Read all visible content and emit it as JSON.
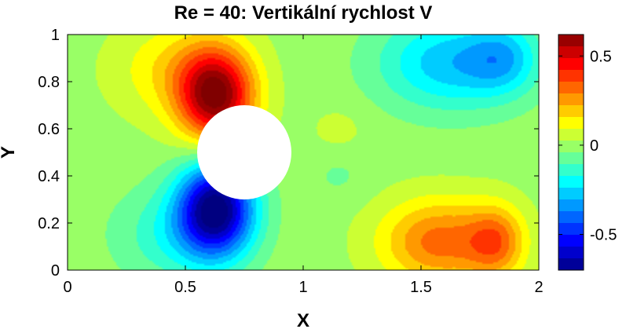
{
  "chart_data": {
    "type": "heatmap",
    "subtype": "filled-contour",
    "title": "Re = 40: Vertikální rychlost V",
    "xlabel": "X",
    "ylabel": "Y",
    "xlim": [
      0,
      2
    ],
    "ylim": [
      0,
      1
    ],
    "x_ticks": [
      0,
      0.5,
      1,
      1.5,
      2
    ],
    "x_tick_labels": [
      "0",
      "0.5",
      "1",
      "1.5",
      "2"
    ],
    "y_ticks": [
      0,
      0.2,
      0.4,
      0.6,
      0.8,
      1
    ],
    "y_tick_labels": [
      "0",
      "0.2",
      "0.4",
      "0.6",
      "0.8",
      "1"
    ],
    "colorbar": {
      "colormap": "jet",
      "range": [
        -0.7,
        0.62
      ],
      "ticks": [
        -0.5,
        0,
        0.5
      ],
      "tick_labels": [
        "-0.5",
        "0",
        "0.5"
      ]
    },
    "obstacle": {
      "shape": "circle",
      "center": [
        0.75,
        0.5
      ],
      "radius": 0.2,
      "color": "#ffffff"
    },
    "field_features": [
      {
        "kind": "maximum",
        "x": 0.63,
        "y": 0.72,
        "value": 0.6
      },
      {
        "kind": "minimum",
        "x": 0.63,
        "y": 0.28,
        "value": -0.68
      },
      {
        "kind": "minimum",
        "x": 1.6,
        "y": 0.85,
        "value": -0.25
      },
      {
        "kind": "minimum",
        "x": 1.85,
        "y": 0.85,
        "value": -0.22
      },
      {
        "kind": "maximum",
        "x": 1.6,
        "y": 0.15,
        "value": 0.3
      },
      {
        "kind": "maximum",
        "x": 1.8,
        "y": 0.15,
        "value": 0.28
      }
    ],
    "grid": false,
    "legend": "colorbar-right"
  }
}
